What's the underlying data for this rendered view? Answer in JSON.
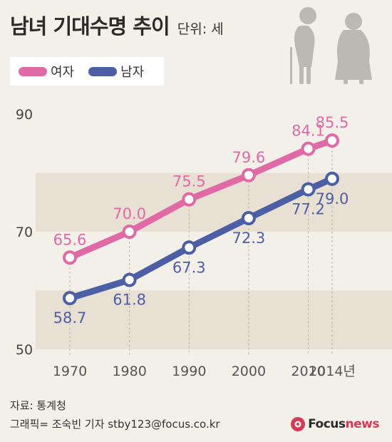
{
  "header": {
    "title": "남녀 기대수명 추이",
    "unit": "단위: 세"
  },
  "chart_data": {
    "type": "line",
    "title": "남녀 기대수명 추이",
    "unit_label": "단위: 세",
    "x": [
      "1970",
      "1980",
      "1990",
      "2000",
      "2010",
      "2014년"
    ],
    "x_numeric": [
      1970,
      1980,
      1990,
      2000,
      2010,
      2014
    ],
    "series": [
      {
        "name": "여자",
        "color": "#e06aa6",
        "values": [
          65.6,
          70.0,
          75.5,
          79.6,
          84.1,
          85.5
        ],
        "labels": [
          "65.6",
          "70.0",
          "75.5",
          "79.6",
          "84.1",
          "85.5"
        ]
      },
      {
        "name": "남자",
        "color": "#4d5fa4",
        "values": [
          58.7,
          61.8,
          67.3,
          72.3,
          77.2,
          79.0
        ],
        "labels": [
          "58.7",
          "61.8",
          "67.3",
          "72.3",
          "77.2",
          "79.0"
        ]
      }
    ],
    "yticks": [
      "90",
      "70",
      "50"
    ],
    "ylim": [
      50,
      90
    ],
    "legend_position": "top-left",
    "grid": "alternating horizontal bands"
  },
  "footer": {
    "source": "자료: 통계청",
    "credit": "그래픽= 조숙빈 기자 stby123@focus.co.kr"
  },
  "logo": {
    "part1": "Focus",
    "part2": "news"
  },
  "colors": {
    "background": "#f3efe9",
    "band": "#e9e0d4",
    "female": "#e06aa6",
    "male": "#4d5fa4"
  },
  "illustration": "elderly-couple-icon"
}
